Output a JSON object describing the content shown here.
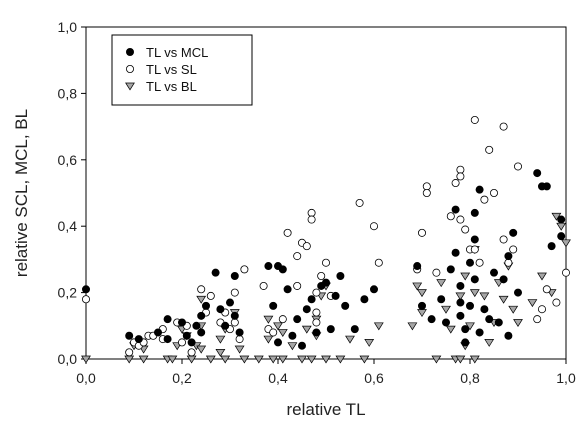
{
  "chart_data": {
    "type": "scatter",
    "xlabel": "relative TL",
    "ylabel": "relative SCL, MCL, BL",
    "xlim": [
      0.0,
      1.0
    ],
    "ylim": [
      0.0,
      1.0
    ],
    "xticks": [
      "0,0",
      "0,2",
      "0,4",
      "0,6",
      "0,8",
      "1,0"
    ],
    "yticks": [
      "0,0",
      "0,2",
      "0,4",
      "0,6",
      "0,8",
      "1,0"
    ],
    "grid": false,
    "legend_position": "top-left",
    "series": [
      {
        "name": "TL vs MCL",
        "marker": "filled-circle",
        "color": "#000000",
        "points": [
          [
            0.0,
            0.21
          ],
          [
            0.09,
            0.07
          ],
          [
            0.11,
            0.06
          ],
          [
            0.15,
            0.08
          ],
          [
            0.17,
            0.12
          ],
          [
            0.17,
            0.06
          ],
          [
            0.2,
            0.11
          ],
          [
            0.21,
            0.07
          ],
          [
            0.22,
            0.05
          ],
          [
            0.23,
            0.1
          ],
          [
            0.24,
            0.08
          ],
          [
            0.24,
            0.13
          ],
          [
            0.25,
            0.16
          ],
          [
            0.27,
            0.26
          ],
          [
            0.28,
            0.15
          ],
          [
            0.29,
            0.1
          ],
          [
            0.3,
            0.17
          ],
          [
            0.31,
            0.25
          ],
          [
            0.31,
            0.13
          ],
          [
            0.32,
            0.08
          ],
          [
            0.38,
            0.28
          ],
          [
            0.39,
            0.16
          ],
          [
            0.4,
            0.28
          ],
          [
            0.4,
            0.05
          ],
          [
            0.41,
            0.27
          ],
          [
            0.42,
            0.21
          ],
          [
            0.43,
            0.07
          ],
          [
            0.44,
            0.12
          ],
          [
            0.45,
            0.04
          ],
          [
            0.46,
            0.15
          ],
          [
            0.47,
            0.18
          ],
          [
            0.48,
            0.08
          ],
          [
            0.49,
            0.22
          ],
          [
            0.5,
            0.23
          ],
          [
            0.51,
            0.09
          ],
          [
            0.52,
            0.19
          ],
          [
            0.53,
            0.25
          ],
          [
            0.54,
            0.16
          ],
          [
            0.56,
            0.09
          ],
          [
            0.58,
            0.18
          ],
          [
            0.6,
            0.21
          ],
          [
            0.69,
            0.28
          ],
          [
            0.7,
            0.16
          ],
          [
            0.72,
            0.12
          ],
          [
            0.74,
            0.18
          ],
          [
            0.75,
            0.11
          ],
          [
            0.76,
            0.27
          ],
          [
            0.77,
            0.45
          ],
          [
            0.77,
            0.32
          ],
          [
            0.78,
            0.22
          ],
          [
            0.78,
            0.17
          ],
          [
            0.78,
            0.13
          ],
          [
            0.79,
            0.05
          ],
          [
            0.79,
            0.09
          ],
          [
            0.8,
            0.16
          ],
          [
            0.8,
            0.29
          ],
          [
            0.81,
            0.36
          ],
          [
            0.81,
            0.24
          ],
          [
            0.81,
            0.44
          ],
          [
            0.82,
            0.51
          ],
          [
            0.82,
            0.08
          ],
          [
            0.83,
            0.15
          ],
          [
            0.84,
            0.12
          ],
          [
            0.85,
            0.26
          ],
          [
            0.86,
            0.11
          ],
          [
            0.87,
            0.24
          ],
          [
            0.88,
            0.07
          ],
          [
            0.88,
            0.31
          ],
          [
            0.89,
            0.38
          ],
          [
            0.9,
            0.2
          ],
          [
            0.94,
            0.56
          ],
          [
            0.95,
            0.52
          ],
          [
            0.96,
            0.52
          ],
          [
            0.97,
            0.34
          ],
          [
            0.99,
            0.42
          ],
          [
            0.99,
            0.37
          ]
        ]
      },
      {
        "name": "TL vs SL",
        "marker": "open-circle",
        "color": "#000000",
        "points": [
          [
            0.0,
            0.18
          ],
          [
            0.09,
            0.02
          ],
          [
            0.1,
            0.05
          ],
          [
            0.11,
            0.04
          ],
          [
            0.12,
            0.05
          ],
          [
            0.13,
            0.07
          ],
          [
            0.14,
            0.07
          ],
          [
            0.16,
            0.09
          ],
          [
            0.16,
            0.06
          ],
          [
            0.19,
            0.11
          ],
          [
            0.2,
            0.05
          ],
          [
            0.21,
            0.1
          ],
          [
            0.22,
            0.02
          ],
          [
            0.24,
            0.21
          ],
          [
            0.25,
            0.14
          ],
          [
            0.26,
            0.19
          ],
          [
            0.28,
            0.11
          ],
          [
            0.29,
            0.14
          ],
          [
            0.3,
            0.09
          ],
          [
            0.31,
            0.11
          ],
          [
            0.31,
            0.2
          ],
          [
            0.32,
            0.06
          ],
          [
            0.33,
            0.27
          ],
          [
            0.37,
            0.22
          ],
          [
            0.38,
            0.09
          ],
          [
            0.39,
            0.08
          ],
          [
            0.41,
            0.12
          ],
          [
            0.42,
            0.38
          ],
          [
            0.44,
            0.31
          ],
          [
            0.44,
            0.22
          ],
          [
            0.45,
            0.35
          ],
          [
            0.46,
            0.34
          ],
          [
            0.47,
            0.44
          ],
          [
            0.47,
            0.42
          ],
          [
            0.48,
            0.11
          ],
          [
            0.48,
            0.14
          ],
          [
            0.48,
            0.2
          ],
          [
            0.49,
            0.25
          ],
          [
            0.5,
            0.29
          ],
          [
            0.51,
            0.19
          ],
          [
            0.57,
            0.47
          ],
          [
            0.6,
            0.4
          ],
          [
            0.61,
            0.29
          ],
          [
            0.69,
            0.27
          ],
          [
            0.7,
            0.38
          ],
          [
            0.71,
            0.52
          ],
          [
            0.71,
            0.5
          ],
          [
            0.73,
            0.26
          ],
          [
            0.76,
            0.43
          ],
          [
            0.77,
            0.53
          ],
          [
            0.78,
            0.57
          ],
          [
            0.78,
            0.55
          ],
          [
            0.78,
            0.42
          ],
          [
            0.79,
            0.39
          ],
          [
            0.8,
            0.33
          ],
          [
            0.81,
            0.72
          ],
          [
            0.81,
            0.33
          ],
          [
            0.82,
            0.29
          ],
          [
            0.83,
            0.48
          ],
          [
            0.84,
            0.63
          ],
          [
            0.85,
            0.5
          ],
          [
            0.87,
            0.7
          ],
          [
            0.87,
            0.36
          ],
          [
            0.88,
            0.29
          ],
          [
            0.89,
            0.33
          ],
          [
            0.9,
            0.58
          ],
          [
            0.94,
            0.12
          ],
          [
            0.95,
            0.15
          ],
          [
            0.96,
            0.21
          ],
          [
            0.98,
            0.17
          ],
          [
            1.0,
            0.26
          ]
        ]
      },
      {
        "name": "TL vs BL",
        "marker": "down-triangle",
        "color": "#a6a6a6",
        "points": [
          [
            0.0,
            0.0
          ],
          [
            0.09,
            0.0
          ],
          [
            0.1,
            0.04
          ],
          [
            0.12,
            0.03
          ],
          [
            0.12,
            0.0
          ],
          [
            0.17,
            0.0
          ],
          [
            0.18,
            0.0
          ],
          [
            0.19,
            0.04
          ],
          [
            0.2,
            0.09
          ],
          [
            0.21,
            0.07
          ],
          [
            0.22,
            0.0
          ],
          [
            0.23,
            0.04
          ],
          [
            0.24,
            0.03
          ],
          [
            0.24,
            0.1
          ],
          [
            0.24,
            0.18
          ],
          [
            0.26,
            0.0
          ],
          [
            0.28,
            0.02
          ],
          [
            0.28,
            0.06
          ],
          [
            0.29,
            0.09
          ],
          [
            0.29,
            0.0
          ],
          [
            0.31,
            0.14
          ],
          [
            0.32,
            0.03
          ],
          [
            0.33,
            0.0
          ],
          [
            0.36,
            0.0
          ],
          [
            0.38,
            0.12
          ],
          [
            0.38,
            0.06
          ],
          [
            0.39,
            0.0
          ],
          [
            0.4,
            0.1
          ],
          [
            0.41,
            0.0
          ],
          [
            0.41,
            0.08
          ],
          [
            0.43,
            0.04
          ],
          [
            0.45,
            0.0
          ],
          [
            0.46,
            0.09
          ],
          [
            0.47,
            0.0
          ],
          [
            0.48,
            0.07
          ],
          [
            0.48,
            0.12
          ],
          [
            0.49,
            0.19
          ],
          [
            0.5,
            0.22
          ],
          [
            0.5,
            0.0
          ],
          [
            0.53,
            0.0
          ],
          [
            0.55,
            0.06
          ],
          [
            0.58,
            0.0
          ],
          [
            0.59,
            0.05
          ],
          [
            0.61,
            0.1
          ],
          [
            0.68,
            0.1
          ],
          [
            0.69,
            0.22
          ],
          [
            0.7,
            0.14
          ],
          [
            0.7,
            0.2
          ],
          [
            0.73,
            0.0
          ],
          [
            0.74,
            0.23
          ],
          [
            0.75,
            0.15
          ],
          [
            0.76,
            0.09
          ],
          [
            0.77,
            0.0
          ],
          [
            0.78,
            0.0
          ],
          [
            0.78,
            0.19
          ],
          [
            0.79,
            0.04
          ],
          [
            0.79,
            0.25
          ],
          [
            0.8,
            0.1
          ],
          [
            0.81,
            0.2
          ],
          [
            0.81,
            0.0
          ],
          [
            0.81,
            0.33
          ],
          [
            0.83,
            0.19
          ],
          [
            0.84,
            0.05
          ],
          [
            0.85,
            0.11
          ],
          [
            0.86,
            0.23
          ],
          [
            0.87,
            0.18
          ],
          [
            0.88,
            0.28
          ],
          [
            0.89,
            0.15
          ],
          [
            0.9,
            0.11
          ],
          [
            0.93,
            0.17
          ],
          [
            0.95,
            0.25
          ],
          [
            0.97,
            0.2
          ],
          [
            0.98,
            0.43
          ],
          [
            0.99,
            0.4
          ],
          [
            1.0,
            0.35
          ]
        ]
      }
    ]
  }
}
